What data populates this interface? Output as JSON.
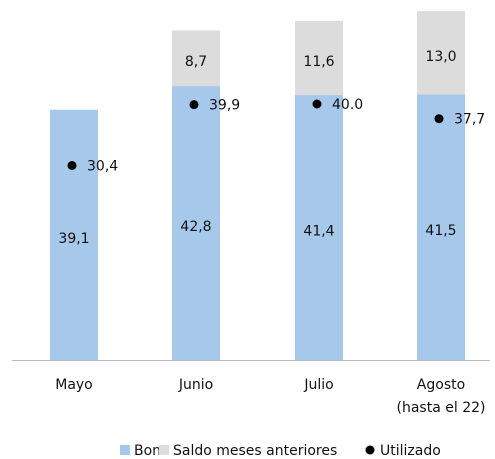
{
  "chart_data": {
    "type": "bar",
    "stacked": true,
    "categories": [
      "Mayo",
      "Junio",
      "Julio",
      "Agosto\n(hasta el 22)"
    ],
    "series": [
      {
        "name": "Bono",
        "color": "#a6c8ea",
        "values": [
          39.1,
          42.8,
          41.4,
          41.5
        ],
        "value_labels": [
          "39,1",
          "42,8",
          "41,4",
          "41,5"
        ]
      },
      {
        "name": "Saldo meses anteriores",
        "color": "#dcdcdc",
        "values": [
          null,
          8.7,
          11.6,
          13.0
        ],
        "value_labels": [
          null,
          "8,7",
          "11,6",
          "13,0"
        ]
      },
      {
        "name": "Utilizado",
        "type": "scatter",
        "color": "#000000",
        "values": [
          30.4,
          39.9,
          40.0,
          37.7
        ],
        "value_labels": [
          "30,4",
          "39,9",
          "40.0",
          "37,7"
        ]
      }
    ],
    "legend": "bottom"
  }
}
